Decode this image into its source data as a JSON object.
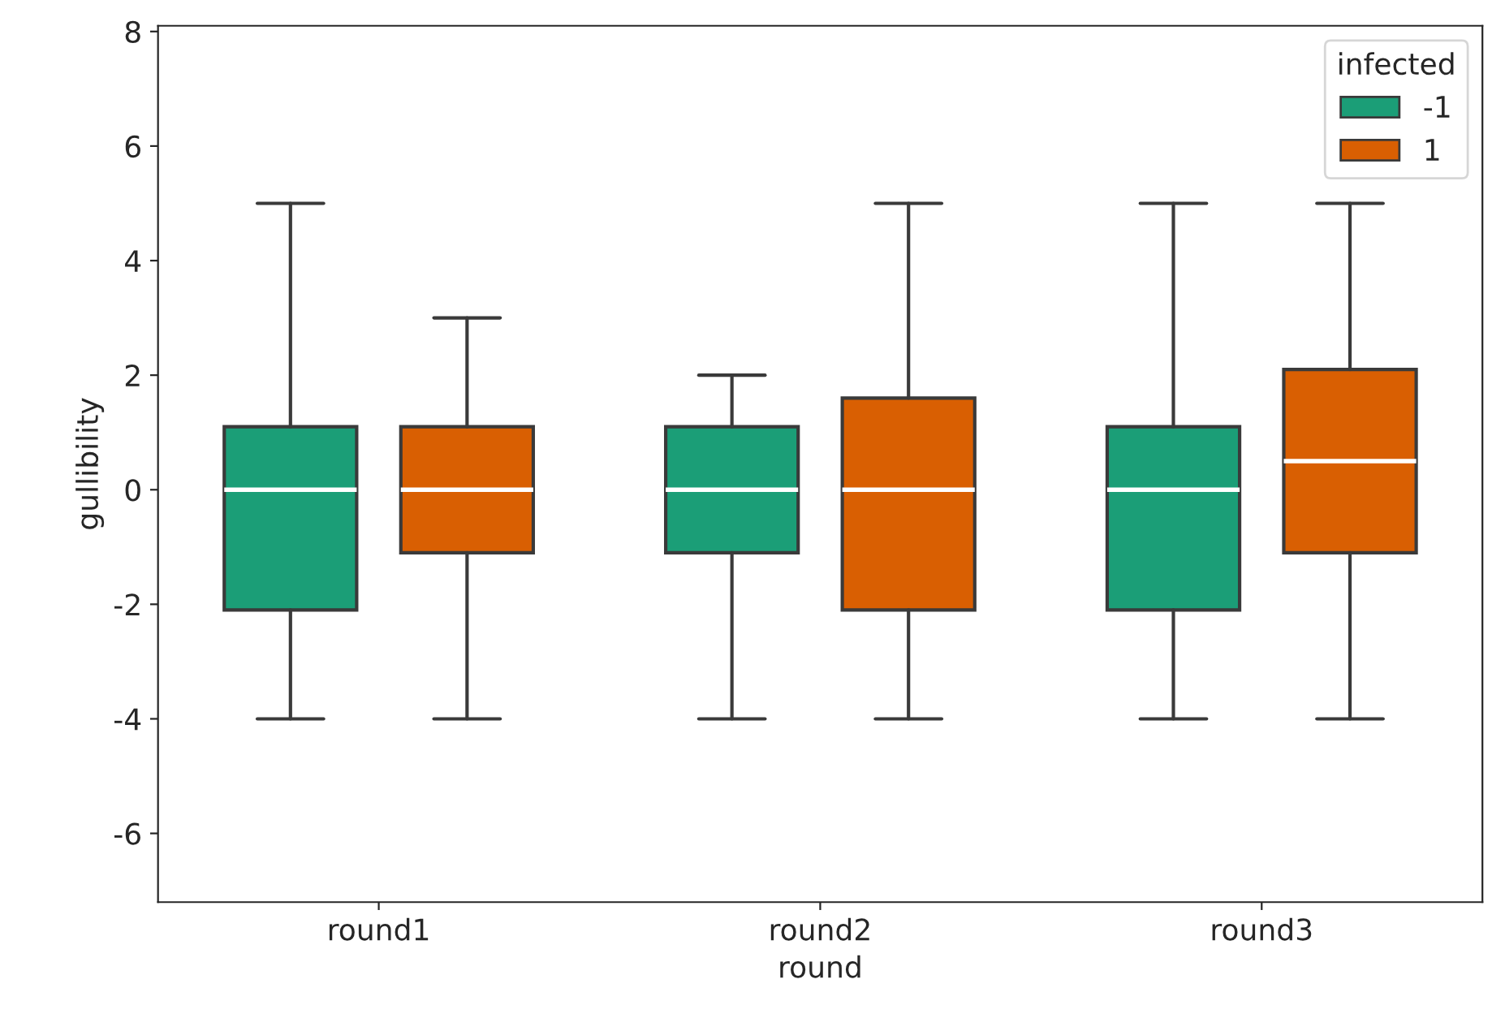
{
  "chart_data": {
    "type": "box",
    "xlabel": "round",
    "ylabel": "gullibility",
    "legend_title": "infected",
    "legend": "top right",
    "grid": false,
    "categories": [
      "round1",
      "round2",
      "round3"
    ],
    "ylim": [
      -7.2,
      8.1
    ],
    "yticks": [
      -6,
      -4,
      -2,
      0,
      2,
      4,
      6,
      8
    ],
    "series": [
      {
        "name": "-1",
        "color": "#1b9e77",
        "boxes": [
          {
            "low": -4,
            "q1": -2.1,
            "median": 0,
            "q3": 1.1,
            "high": 5
          },
          {
            "low": -4,
            "q1": -1.1,
            "median": 0,
            "q3": 1.1,
            "high": 2
          },
          {
            "low": -4,
            "q1": -2.1,
            "median": 0,
            "q3": 1.1,
            "high": 5
          }
        ]
      },
      {
        "name": "1",
        "color": "#d95f02",
        "boxes": [
          {
            "low": -4,
            "q1": -1.1,
            "median": 0,
            "q3": 1.1,
            "high": 3
          },
          {
            "low": -4,
            "q1": -2.1,
            "median": 0,
            "q3": 1.6,
            "high": 5
          },
          {
            "low": -4,
            "q1": -1.1,
            "median": 0.5,
            "q3": 2.1,
            "high": 5
          }
        ]
      }
    ]
  }
}
